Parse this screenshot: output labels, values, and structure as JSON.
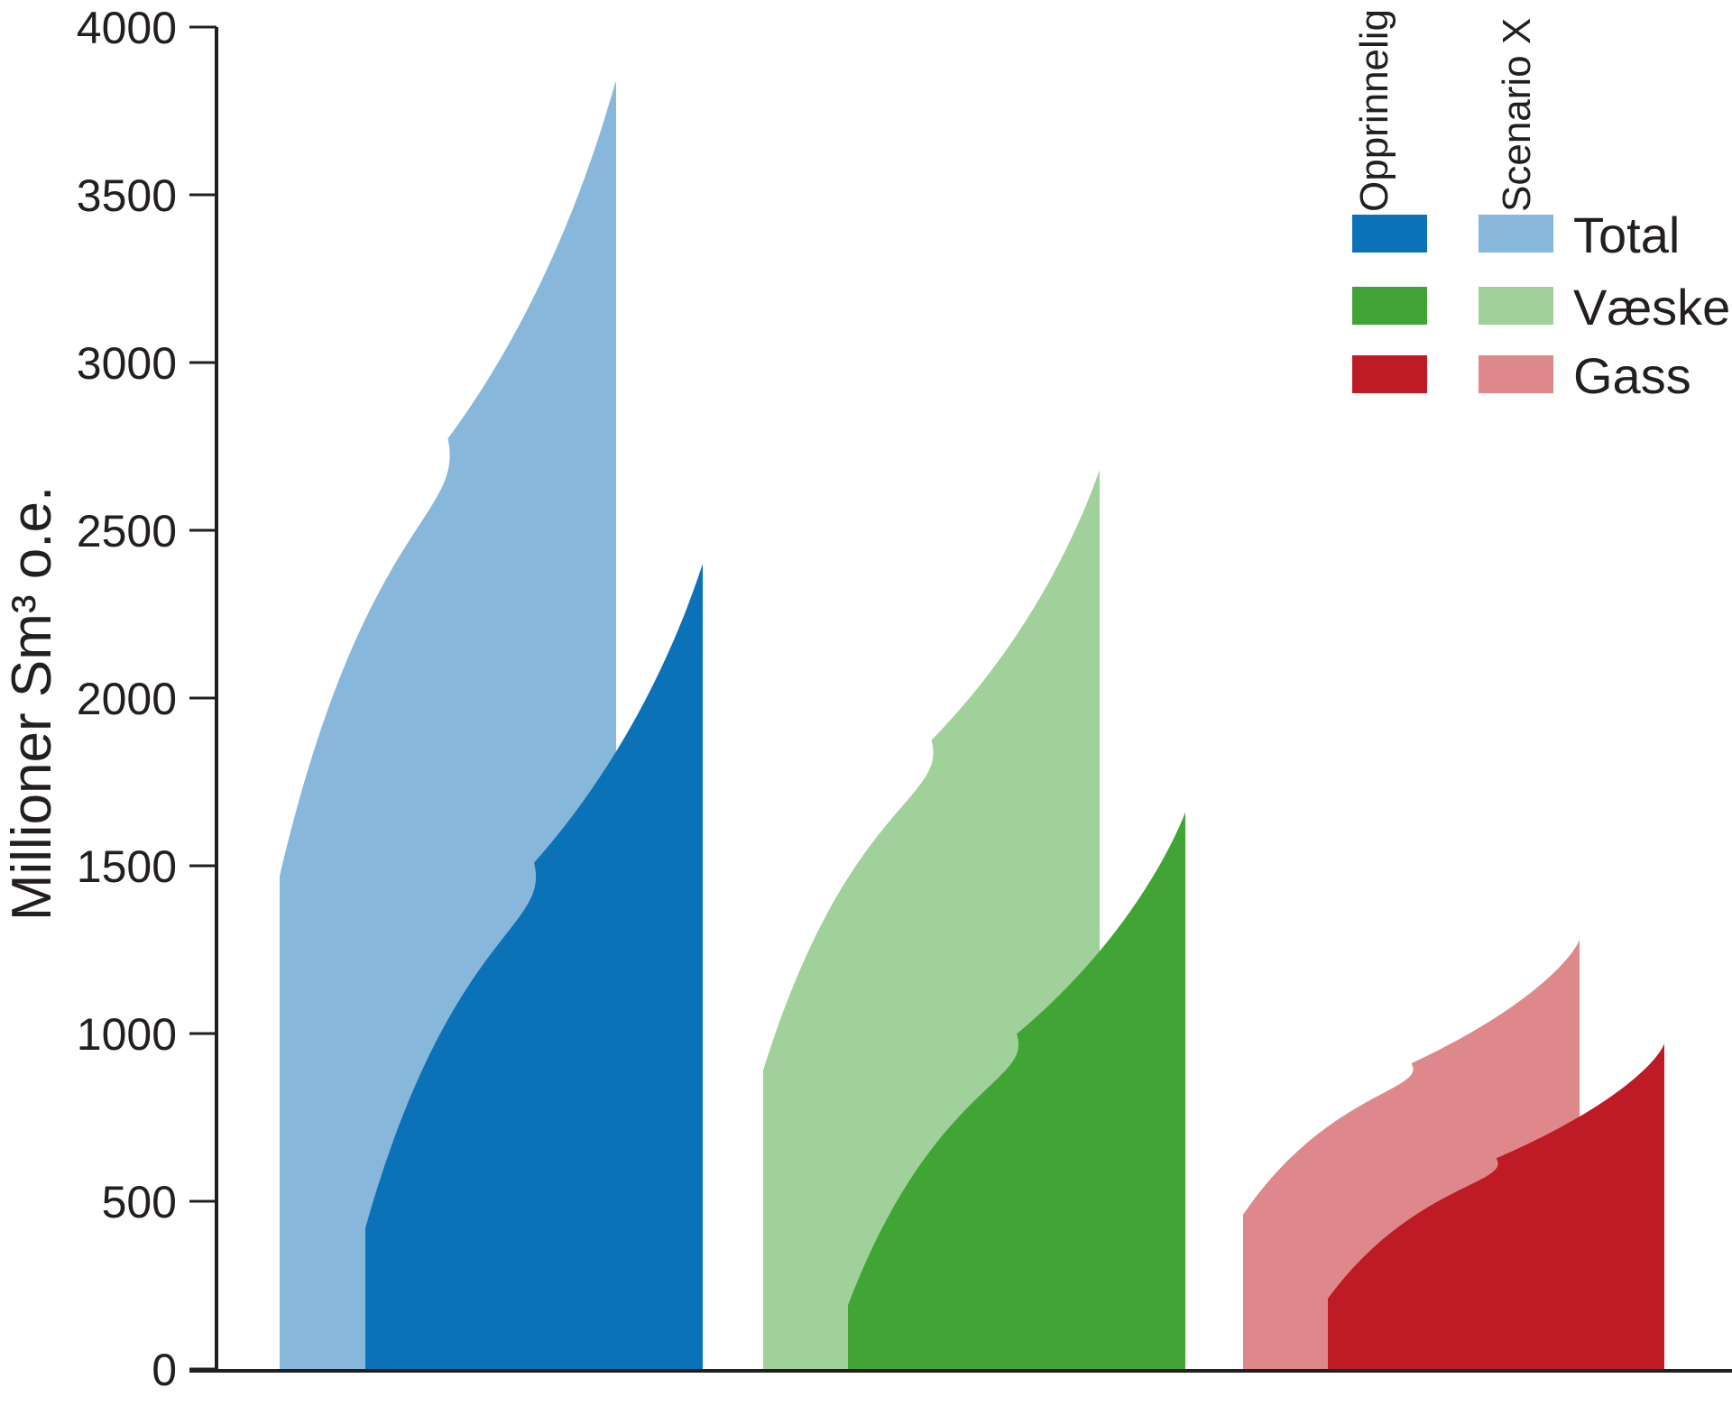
{
  "chart_data": {
    "type": "area",
    "ylabel": "Millioner Sm³ o.e.",
    "ylim": [
      0,
      4000
    ],
    "yticks": [
      0,
      500,
      1000,
      1500,
      2000,
      2500,
      3000,
      3500,
      4000
    ],
    "grid": false,
    "legend": {
      "placement": "top-right",
      "column_headers": [
        "Opprinnelig estimat",
        "Scenario X"
      ],
      "rows": [
        {
          "label": "Total",
          "original_color": "#0b72b8",
          "scenario_color": "#87b8db"
        },
        {
          "label": "Væske",
          "original_color": "#41a536",
          "scenario_color": "#a0d19a"
        },
        {
          "label": "Gass",
          "original_color": "#be1b27",
          "scenario_color": "#de888c"
        }
      ]
    },
    "groups": [
      {
        "name": "Total",
        "series": [
          {
            "name": "Scenario X",
            "color": "#87b8db",
            "start": 1470,
            "end": 3840
          },
          {
            "name": "Opprinnelig estimat",
            "color": "#0b72b8",
            "start": 420,
            "end": 2400
          }
        ]
      },
      {
        "name": "Væske",
        "series": [
          {
            "name": "Scenario X",
            "color": "#a0d19a",
            "start": 890,
            "end": 2680
          },
          {
            "name": "Opprinnelig estimat",
            "color": "#41a536",
            "start": 190,
            "end": 1660
          }
        ]
      },
      {
        "name": "Gass",
        "series": [
          {
            "name": "Scenario X",
            "color": "#de888c",
            "start": 460,
            "end": 1280
          },
          {
            "name": "Opprinnelig estimat",
            "color": "#be1b27",
            "start": 210,
            "end": 970
          }
        ]
      }
    ]
  }
}
